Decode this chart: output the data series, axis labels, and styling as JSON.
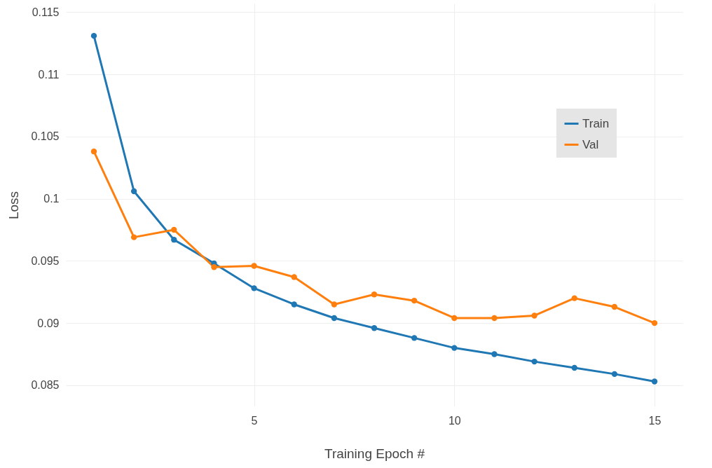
{
  "chart_data": {
    "type": "line",
    "xlabel": "Training Epoch #",
    "ylabel": "Loss",
    "x": [
      1,
      2,
      3,
      4,
      5,
      6,
      7,
      8,
      9,
      10,
      11,
      12,
      13,
      14,
      15
    ],
    "series": [
      {
        "name": "Train",
        "color": "#1f77b4",
        "values": [
          0.1131,
          0.1006,
          0.0967,
          0.0948,
          0.0928,
          0.0915,
          0.0904,
          0.0896,
          0.0888,
          0.088,
          0.0875,
          0.0869,
          0.0864,
          0.0859,
          0.0853
        ]
      },
      {
        "name": "Val",
        "color": "#ff7f0e",
        "values": [
          0.1038,
          0.0969,
          0.0975,
          0.0945,
          0.0946,
          0.0937,
          0.0915,
          0.0923,
          0.0918,
          0.0904,
          0.0904,
          0.0906,
          0.092,
          0.0913,
          0.09
        ]
      }
    ],
    "xlim": [
      0.3,
      15.7
    ],
    "xticks": [
      5,
      10,
      15
    ],
    "ylim": [
      0.0833,
      0.1157
    ],
    "yticks": [
      0.085,
      0.09,
      0.095,
      0.1,
      0.105,
      0.11,
      0.115
    ],
    "grid": true,
    "legend": "top right",
    "marker": "circle",
    "line_style": "solid"
  }
}
